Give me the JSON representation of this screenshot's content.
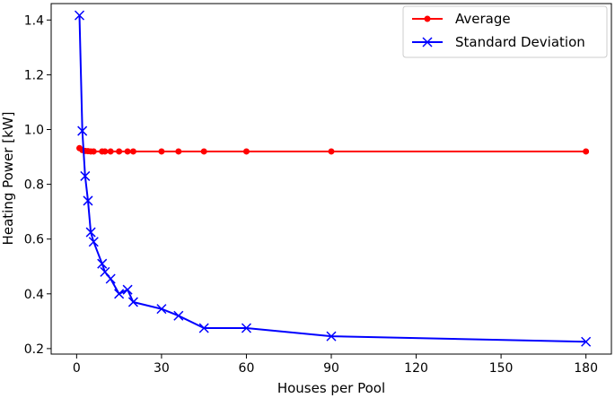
{
  "chart_data": {
    "type": "line",
    "title": "",
    "xlabel": "Houses per Pool",
    "ylabel": "Heating Power [kW]",
    "xlim": [
      -9,
      189
    ],
    "ylim": [
      0.18,
      1.46
    ],
    "xticks": [
      0,
      30,
      60,
      90,
      120,
      150,
      180
    ],
    "yticks": [
      0.2,
      0.4,
      0.6,
      0.8,
      1.0,
      1.2,
      1.4
    ],
    "xtick_labels": [
      "0",
      "30",
      "60",
      "90",
      "120",
      "150",
      "180"
    ],
    "ytick_labels": [
      "0.2",
      "0.4",
      "0.6",
      "0.8",
      "1.0",
      "1.2",
      "1.4"
    ],
    "legend_position": "top-right",
    "series": [
      {
        "name": "Average",
        "color": "#ff0000",
        "marker": "dot",
        "x": [
          1,
          2,
          3,
          4,
          5,
          6,
          9,
          10,
          12,
          15,
          18,
          20,
          30,
          36,
          45,
          60,
          90,
          180
        ],
        "y": [
          0.932,
          0.925,
          0.922,
          0.921,
          0.92,
          0.92,
          0.92,
          0.92,
          0.92,
          0.92,
          0.92,
          0.92,
          0.92,
          0.92,
          0.92,
          0.92,
          0.92,
          0.92
        ]
      },
      {
        "name": "Standard Deviation",
        "color": "#0000ff",
        "marker": "x",
        "x": [
          1,
          2,
          3,
          4,
          5,
          6,
          9,
          10,
          12,
          15,
          18,
          20,
          30,
          36,
          45,
          60,
          90,
          180
        ],
        "y": [
          1.417,
          0.995,
          0.83,
          0.74,
          0.625,
          0.59,
          0.51,
          0.48,
          0.455,
          0.4,
          0.415,
          0.37,
          0.345,
          0.32,
          0.275,
          0.275,
          0.245,
          0.225
        ]
      }
    ]
  }
}
